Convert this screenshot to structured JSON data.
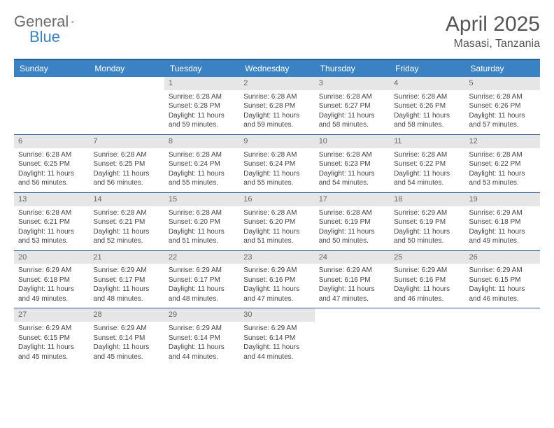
{
  "brand": {
    "part1": "General",
    "part2": "Blue"
  },
  "title": "April 2025",
  "location": "Masasi, Tanzania",
  "colors": {
    "header_bg": "#3b82c4",
    "border": "#2a5d8f",
    "daynum_bg": "#e6e6e6",
    "text": "#444444"
  },
  "daysOfWeek": [
    "Sunday",
    "Monday",
    "Tuesday",
    "Wednesday",
    "Thursday",
    "Friday",
    "Saturday"
  ],
  "grid": {
    "firstDayOffset": 2,
    "daysInMonth": 30
  },
  "days": {
    "1": {
      "sunrise": "6:28 AM",
      "sunset": "6:28 PM",
      "daylight": "11 hours and 59 minutes."
    },
    "2": {
      "sunrise": "6:28 AM",
      "sunset": "6:28 PM",
      "daylight": "11 hours and 59 minutes."
    },
    "3": {
      "sunrise": "6:28 AM",
      "sunset": "6:27 PM",
      "daylight": "11 hours and 58 minutes."
    },
    "4": {
      "sunrise": "6:28 AM",
      "sunset": "6:26 PM",
      "daylight": "11 hours and 58 minutes."
    },
    "5": {
      "sunrise": "6:28 AM",
      "sunset": "6:26 PM",
      "daylight": "11 hours and 57 minutes."
    },
    "6": {
      "sunrise": "6:28 AM",
      "sunset": "6:25 PM",
      "daylight": "11 hours and 56 minutes."
    },
    "7": {
      "sunrise": "6:28 AM",
      "sunset": "6:25 PM",
      "daylight": "11 hours and 56 minutes."
    },
    "8": {
      "sunrise": "6:28 AM",
      "sunset": "6:24 PM",
      "daylight": "11 hours and 55 minutes."
    },
    "9": {
      "sunrise": "6:28 AM",
      "sunset": "6:24 PM",
      "daylight": "11 hours and 55 minutes."
    },
    "10": {
      "sunrise": "6:28 AM",
      "sunset": "6:23 PM",
      "daylight": "11 hours and 54 minutes."
    },
    "11": {
      "sunrise": "6:28 AM",
      "sunset": "6:22 PM",
      "daylight": "11 hours and 54 minutes."
    },
    "12": {
      "sunrise": "6:28 AM",
      "sunset": "6:22 PM",
      "daylight": "11 hours and 53 minutes."
    },
    "13": {
      "sunrise": "6:28 AM",
      "sunset": "6:21 PM",
      "daylight": "11 hours and 53 minutes."
    },
    "14": {
      "sunrise": "6:28 AM",
      "sunset": "6:21 PM",
      "daylight": "11 hours and 52 minutes."
    },
    "15": {
      "sunrise": "6:28 AM",
      "sunset": "6:20 PM",
      "daylight": "11 hours and 51 minutes."
    },
    "16": {
      "sunrise": "6:28 AM",
      "sunset": "6:20 PM",
      "daylight": "11 hours and 51 minutes."
    },
    "17": {
      "sunrise": "6:28 AM",
      "sunset": "6:19 PM",
      "daylight": "11 hours and 50 minutes."
    },
    "18": {
      "sunrise": "6:29 AM",
      "sunset": "6:19 PM",
      "daylight": "11 hours and 50 minutes."
    },
    "19": {
      "sunrise": "6:29 AM",
      "sunset": "6:18 PM",
      "daylight": "11 hours and 49 minutes."
    },
    "20": {
      "sunrise": "6:29 AM",
      "sunset": "6:18 PM",
      "daylight": "11 hours and 49 minutes."
    },
    "21": {
      "sunrise": "6:29 AM",
      "sunset": "6:17 PM",
      "daylight": "11 hours and 48 minutes."
    },
    "22": {
      "sunrise": "6:29 AM",
      "sunset": "6:17 PM",
      "daylight": "11 hours and 48 minutes."
    },
    "23": {
      "sunrise": "6:29 AM",
      "sunset": "6:16 PM",
      "daylight": "11 hours and 47 minutes."
    },
    "24": {
      "sunrise": "6:29 AM",
      "sunset": "6:16 PM",
      "daylight": "11 hours and 47 minutes."
    },
    "25": {
      "sunrise": "6:29 AM",
      "sunset": "6:16 PM",
      "daylight": "11 hours and 46 minutes."
    },
    "26": {
      "sunrise": "6:29 AM",
      "sunset": "6:15 PM",
      "daylight": "11 hours and 46 minutes."
    },
    "27": {
      "sunrise": "6:29 AM",
      "sunset": "6:15 PM",
      "daylight": "11 hours and 45 minutes."
    },
    "28": {
      "sunrise": "6:29 AM",
      "sunset": "6:14 PM",
      "daylight": "11 hours and 45 minutes."
    },
    "29": {
      "sunrise": "6:29 AM",
      "sunset": "6:14 PM",
      "daylight": "11 hours and 44 minutes."
    },
    "30": {
      "sunrise": "6:29 AM",
      "sunset": "6:14 PM",
      "daylight": "11 hours and 44 minutes."
    }
  },
  "labels": {
    "sunrise": "Sunrise:",
    "sunset": "Sunset:",
    "daylight": "Daylight:"
  }
}
